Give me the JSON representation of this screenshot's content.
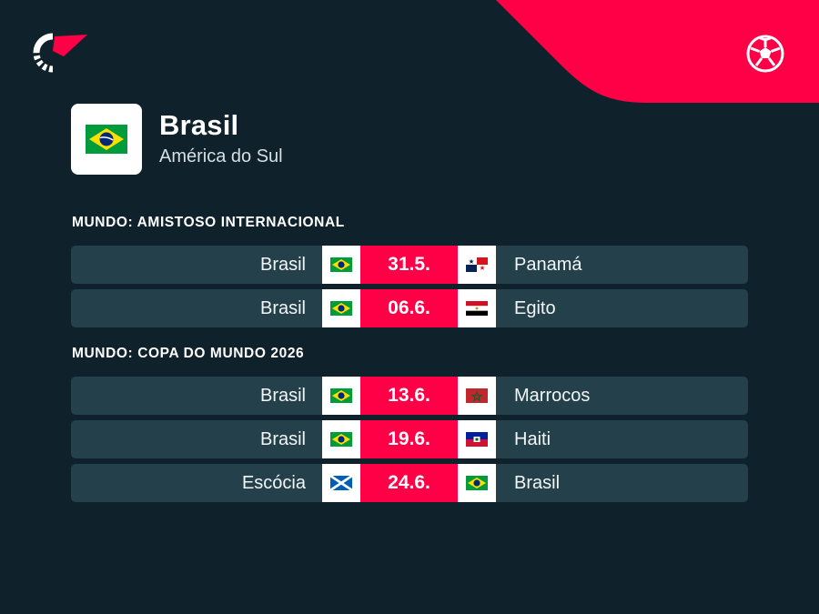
{
  "colors": {
    "background": "#0f222b",
    "row_background": "#24414b",
    "accent": "#ff0046"
  },
  "team": {
    "name": "Brasil",
    "region": "América do Sul",
    "flag": "brazil-flag"
  },
  "sections": [
    {
      "title": "MUNDO: AMISTOSO INTERNACIONAL",
      "matches": [
        {
          "home": "Brasil",
          "home_flag": "brazil-flag",
          "date": "31.5.",
          "away": "Panamá",
          "away_flag": "panama-flag"
        },
        {
          "home": "Brasil",
          "home_flag": "brazil-flag",
          "date": "06.6.",
          "away": "Egito",
          "away_flag": "egypt-flag"
        }
      ]
    },
    {
      "title": "MUNDO: COPA DO MUNDO 2026",
      "matches": [
        {
          "home": "Brasil",
          "home_flag": "brazil-flag",
          "date": "13.6.",
          "away": "Marrocos",
          "away_flag": "morocco-flag"
        },
        {
          "home": "Brasil",
          "home_flag": "brazil-flag",
          "date": "19.6.",
          "away": "Haiti",
          "away_flag": "haiti-flag"
        },
        {
          "home": "Escócia",
          "home_flag": "scotland-flag",
          "date": "24.6.",
          "away": "Brasil",
          "away_flag": "brazil-flag"
        }
      ]
    }
  ],
  "icons": {
    "brand": "brand-logo-icon",
    "sport": "football-icon"
  }
}
